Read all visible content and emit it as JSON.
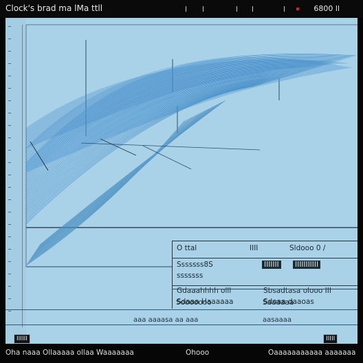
{
  "titlebar": {
    "title": "Clock's brad  ma lMa ttll",
    "status": "6800 ll"
  },
  "panel": {
    "rows": [
      {
        "c1": "O ttal",
        "c2": "IIII",
        "c3": "Sldooo 0 /"
      },
      {
        "c1": "Sssssss8S",
        "c2": "IIIIIII",
        "c3": "IIIIIIIIIII"
      },
      {
        "c1": "sssssss",
        "c2": "",
        "c3": ""
      },
      {
        "c1": "Gdaaahhhh olll",
        "c2": "Sbsadtasa olooo III",
        "c3": ""
      },
      {
        "c1": "Sdaaa Haaaaaa",
        "c2": "Sdoaa daaoas",
        "c3": ""
      },
      {
        "c1": "Sooooooo",
        "c2": "Saaaaaa",
        "c3": ""
      }
    ]
  },
  "bottom": {
    "left": "aaa aaaasa aa  aaa",
    "right": "aasaaaa"
  },
  "buttons": {
    "left": "IIIIII",
    "right": "IIIII"
  },
  "footer": {
    "left": "Oha naaa  Ollaaaaa  ollaa  Waaaaaaa",
    "center": "Ohooo",
    "right": "Oaaaaaaaaaaa aaaaaaa"
  },
  "colors": {
    "window_bg": "#a9d2e9",
    "stroke_dark": "#2d4f6a",
    "stroke_blue": "#3d87c4"
  }
}
